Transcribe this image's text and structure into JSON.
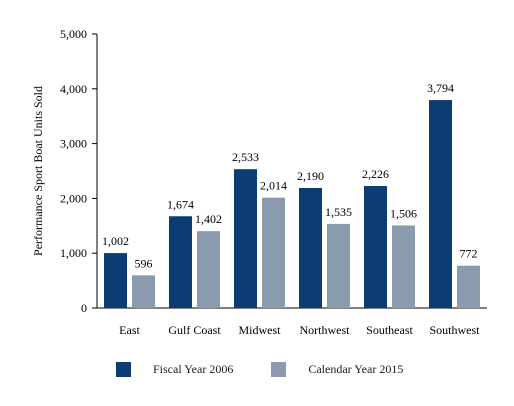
{
  "chart_data": {
    "type": "bar",
    "ylabel": "Performance Sport Boat Units Sold",
    "xlabel": "",
    "categories": [
      "East",
      "Gulf Coast",
      "Midwest",
      "Northwest",
      "Southeast",
      "Southwest"
    ],
    "series": [
      {
        "name": "Fiscal Year 2006",
        "color": "#0b3c72",
        "values": [
          1002,
          1674,
          2533,
          2190,
          2226,
          3794
        ],
        "labels": [
          "1,002",
          "1,674",
          "2,533",
          "2,190",
          "2,226",
          "3,794"
        ]
      },
      {
        "name": "Calendar Year 2015",
        "color": "#8a9bad",
        "values": [
          596,
          1402,
          2014,
          1535,
          1506,
          772
        ],
        "labels": [
          "596",
          "1,402",
          "2,014",
          "1,535",
          "1,506",
          "772"
        ]
      }
    ],
    "ylim": [
      0,
      5000
    ],
    "yticks": [
      0,
      1000,
      2000,
      3000,
      4000,
      5000
    ],
    "ytick_labels": [
      "0",
      "1,000",
      "2,000",
      "3,000",
      "4,000",
      "5,000"
    ],
    "grid": false,
    "legend_position": "bottom"
  }
}
